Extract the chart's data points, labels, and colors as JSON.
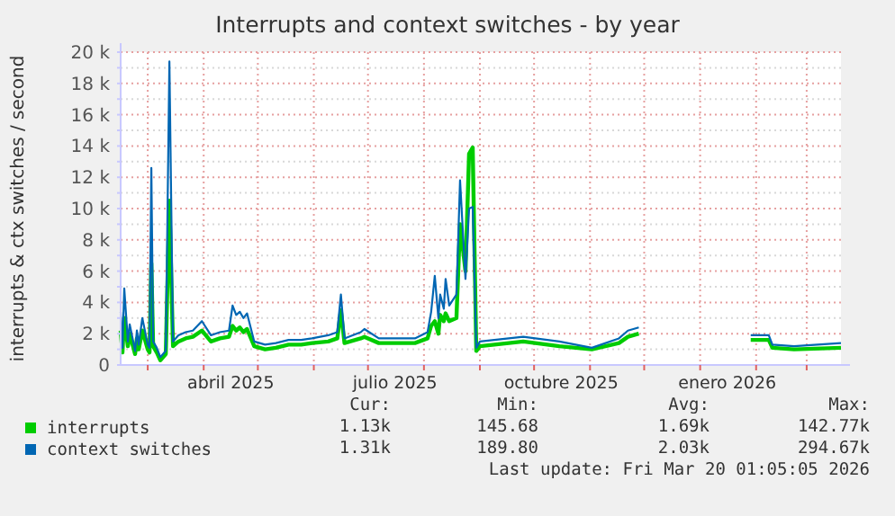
{
  "chart_data": {
    "type": "line",
    "title": "Interrupts and context switches - by year",
    "ylabel": "interrupts & ctx switches / second",
    "x": [
      "2025-02-14",
      "2025-02-15",
      "2025-02-16",
      "2025-02-18",
      "2025-02-19",
      "2025-02-22",
      "2025-02-23",
      "2025-02-24",
      "2025-02-26",
      "2025-03-01",
      "2025-03-02",
      "2025-03-03",
      "2025-03-04",
      "2025-03-06",
      "2025-03-08",
      "2025-03-11",
      "2025-03-13",
      "2025-03-15",
      "2025-03-18",
      "2025-03-22",
      "2025-03-26",
      "2025-03-31",
      "2025-04-05",
      "2025-04-10",
      "2025-04-15",
      "2025-04-17",
      "2025-04-19",
      "2025-04-21",
      "2025-04-23",
      "2025-04-25",
      "2025-04-29",
      "2025-05-05",
      "2025-05-11",
      "2025-05-18",
      "2025-05-25",
      "2025-05-31",
      "2025-06-09",
      "2025-06-14",
      "2025-06-16",
      "2025-06-18",
      "2025-06-27",
      "2025-06-29",
      "2025-07-07",
      "2025-07-17",
      "2025-07-27",
      "2025-08-03",
      "2025-08-05",
      "2025-08-07",
      "2025-08-09",
      "2025-08-10",
      "2025-08-12",
      "2025-08-13",
      "2025-08-15",
      "2025-08-19",
      "2025-08-21",
      "2025-08-24",
      "2025-08-26",
      "2025-08-28",
      "2025-08-30",
      "2025-09-01",
      "2025-09-25",
      "2025-10-15",
      "2025-11-02",
      "2025-11-17",
      "2025-11-22",
      "2025-11-28",
      "2025-12-15",
      "2026-01-29",
      "2026-02-08",
      "2026-02-10",
      "2026-02-22",
      "2026-03-20"
    ],
    "series": [
      {
        "name": "interrupts",
        "color": "#00cc00",
        "values": [
          2200,
          800,
          3000,
          1200,
          2000,
          700,
          1700,
          1000,
          2200,
          1000,
          800,
          6500,
          1200,
          800,
          300,
          700,
          10500,
          1200,
          1500,
          1700,
          1800,
          2200,
          1500,
          1700,
          1800,
          2500,
          2200,
          2400,
          2100,
          2300,
          1200,
          1000,
          1100,
          1300,
          1300,
          1400,
          1500,
          1700,
          3500,
          1400,
          1700,
          1800,
          1400,
          1400,
          1400,
          1700,
          2500,
          2800,
          2000,
          3200,
          2800,
          3300,
          2800,
          3000,
          9000,
          6000,
          13500,
          13900,
          900,
          1200,
          1500,
          1200,
          1000,
          1400,
          1800,
          2000,
          null,
          1600,
          1600,
          1100,
          1000,
          1100
        ]
      },
      {
        "name": "context switches",
        "color": "#0066b3",
        "values": [
          3400,
          1100,
          4900,
          1500,
          2600,
          900,
          2200,
          1300,
          3000,
          1300,
          1100,
          12600,
          1500,
          1100,
          500,
          900,
          19400,
          1500,
          1900,
          2100,
          2200,
          2800,
          1900,
          2100,
          2200,
          3800,
          3200,
          3400,
          3000,
          3300,
          1500,
          1300,
          1400,
          1600,
          1600,
          1700,
          1900,
          2100,
          4500,
          1700,
          2100,
          2300,
          1700,
          1700,
          1700,
          2100,
          3400,
          5700,
          3000,
          4500,
          3600,
          5500,
          3800,
          4500,
          11800,
          5500,
          10000,
          10100,
          1100,
          1500,
          1800,
          1500,
          1100,
          1700,
          2200,
          2400,
          null,
          1900,
          1900,
          1300,
          1200,
          1400
        ]
      }
    ],
    "xlim": [
      "2025-02-14",
      "2026-03-20"
    ],
    "xticks": [
      {
        "value": "2025-03-01",
        "label": null
      },
      {
        "value": "2025-04-01",
        "label": null
      },
      {
        "value": "2025-04-16",
        "label": "abril 2025"
      },
      {
        "value": "2025-05-01",
        "label": null
      },
      {
        "value": "2025-06-01",
        "label": null
      },
      {
        "value": "2025-07-01",
        "label": null
      },
      {
        "value": "2025-07-16",
        "label": "julio 2025"
      },
      {
        "value": "2025-08-01",
        "label": null
      },
      {
        "value": "2025-09-01",
        "label": null
      },
      {
        "value": "2025-10-01",
        "label": null
      },
      {
        "value": "2025-10-16",
        "label": "octubre 2025"
      },
      {
        "value": "2025-11-01",
        "label": null
      },
      {
        "value": "2025-12-01",
        "label": null
      },
      {
        "value": "2026-01-01",
        "label": null
      },
      {
        "value": "2026-01-16",
        "label": "enero 2026"
      },
      {
        "value": "2026-02-01",
        "label": null
      },
      {
        "value": "2026-03-01",
        "label": null
      }
    ],
    "ylim": [
      0,
      20000
    ],
    "yticks": [
      0,
      {
        "value": 1000,
        "label": null
      },
      {
        "value": 2000,
        "label": "2 k"
      },
      {
        "value": 3000,
        "label": null
      },
      {
        "value": 4000,
        "label": "4 k"
      },
      {
        "value": 5000,
        "label": null
      },
      {
        "value": 6000,
        "label": "6 k"
      },
      {
        "value": 7000,
        "label": null
      },
      {
        "value": 8000,
        "label": "8 k"
      },
      {
        "value": 9000,
        "label": null
      },
      {
        "value": 10000,
        "label": "10 k"
      },
      {
        "value": 11000,
        "label": null
      },
      {
        "value": 12000,
        "label": "12 k"
      },
      {
        "value": 13000,
        "label": null
      },
      {
        "value": 14000,
        "label": "14 k"
      },
      {
        "value": 15000,
        "label": null
      },
      {
        "value": 16000,
        "label": "16 k"
      },
      {
        "value": 17000,
        "label": null
      },
      {
        "value": 18000,
        "label": "18 k"
      },
      {
        "value": 19000,
        "label": null
      },
      {
        "value": 20000,
        "label": "20 k"
      }
    ],
    "grid": true,
    "legend": "bottom",
    "marker": "none",
    "line_style": "solid",
    "annotations": [
      "Cur:",
      "Min:",
      "Avg:",
      "Max:",
      "1.13k",
      "145.68",
      "1.69k",
      "142.77k",
      "1.31k",
      "189.80",
      "2.03k",
      "294.67k",
      "Last update: Fri Mar 20 01:05:05 2026"
    ]
  }
}
